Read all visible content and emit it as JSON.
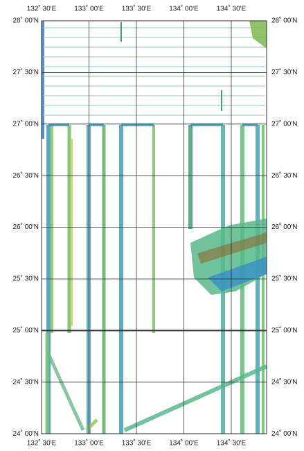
{
  "map": {
    "lon_labels": [
      "132˚ 30'E",
      "133˚ 00'E",
      "133˚ 30'E",
      "134˚ 00'E",
      "134˚ 30'E"
    ],
    "lat_labels": [
      "28˚ 00'N",
      "27˚ 30'N",
      "27˚ 00'N",
      "26˚ 30'N",
      "26˚ 00'N",
      "25˚ 30'N",
      "25˚ 00'N",
      "24˚ 30'N",
      "24˚ 00'N"
    ]
  }
}
